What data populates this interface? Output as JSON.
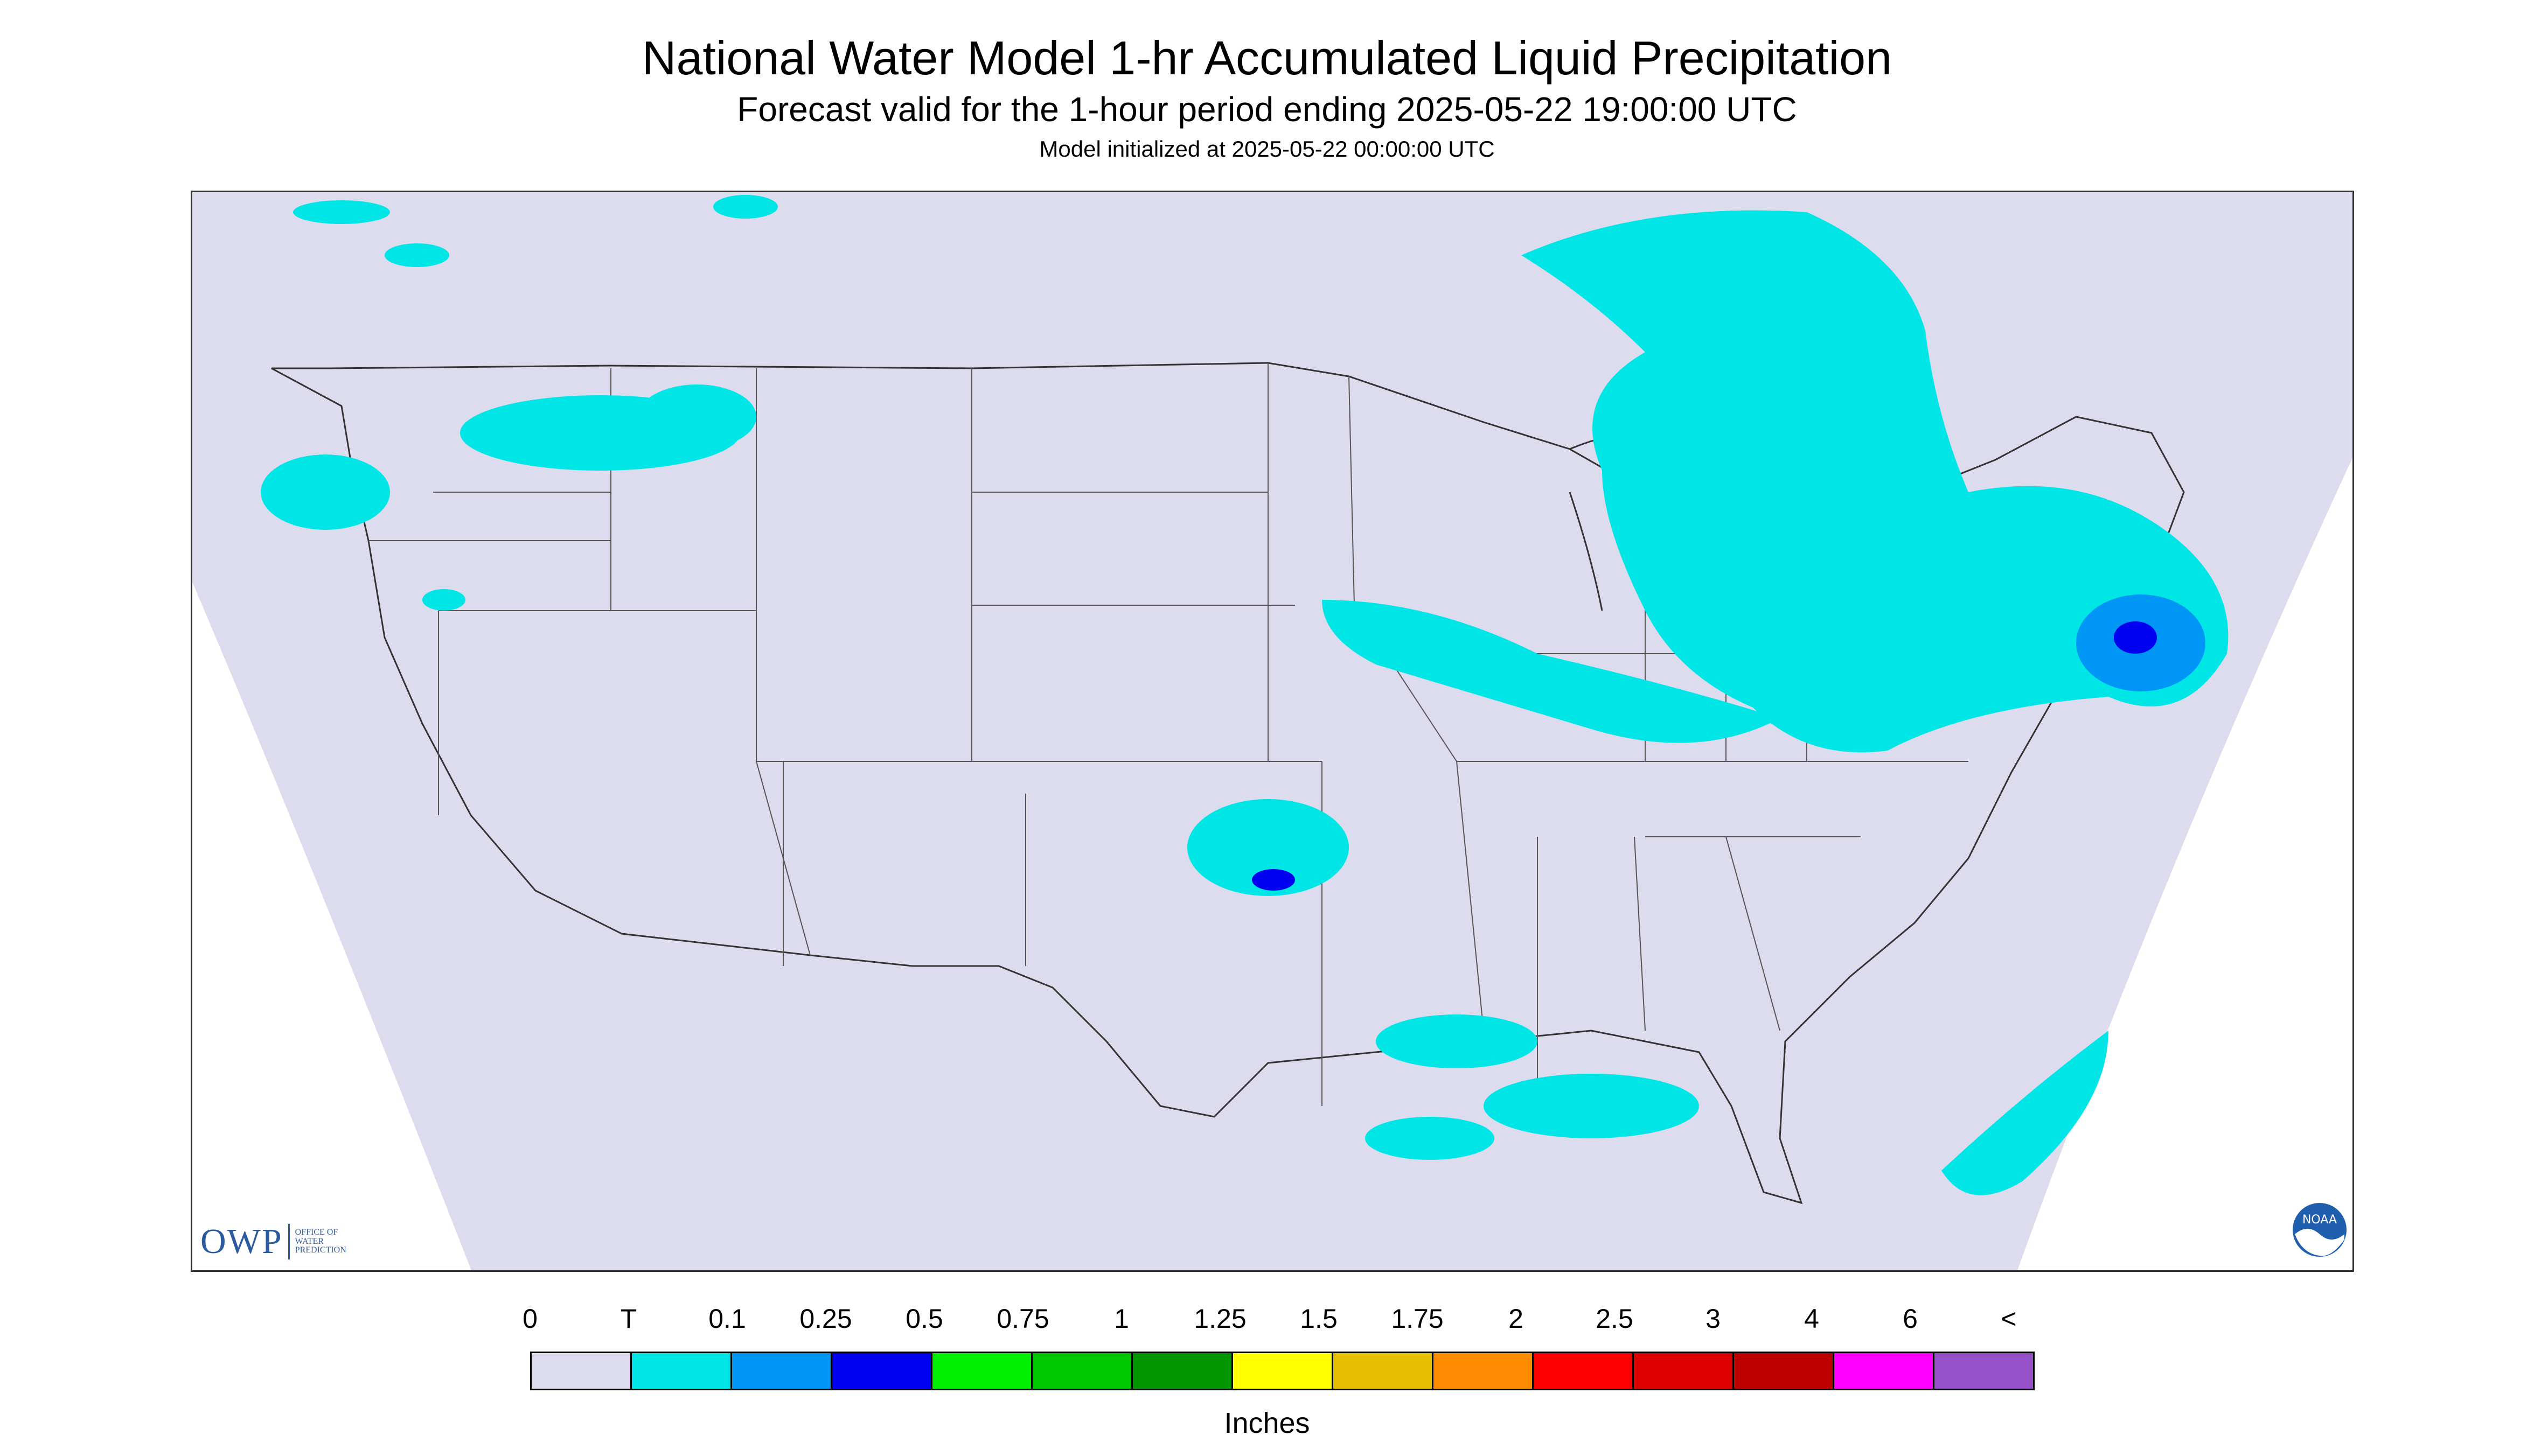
{
  "header": {
    "title": "National Water Model 1-hr Accumulated Liquid Precipitation",
    "subtitle": "Forecast valid for the 1-hour period ending 2025-05-22 19:00:00 UTC",
    "init": "Model initialized at 2025-05-22 00:00:00 UTC"
  },
  "logos": {
    "owp_mark": "OWP",
    "owp_line1": "OFFICE OF",
    "owp_line2": "WATER",
    "owp_line3": "PREDICTION",
    "noaa": "NOAA"
  },
  "legend": {
    "labels": [
      "0",
      "T",
      "0.1",
      "0.25",
      "0.5",
      "0.75",
      "1",
      "1.25",
      "1.5",
      "1.75",
      "2",
      "2.5",
      "3",
      "4",
      "6",
      "<"
    ],
    "colors": [
      "#dcdcee",
      "#00e6e6",
      "#0096f5",
      "#0000f0",
      "#00f000",
      "#00c800",
      "#009600",
      "#ffff00",
      "#e6be00",
      "#ff8c00",
      "#ff0000",
      "#dc0000",
      "#be0000",
      "#ff00ff",
      "#9650c8"
    ],
    "units": "Inches"
  },
  "map": {
    "domain_fill": "#dcdcee",
    "precip_light": "#00e6e6",
    "precip_medium": "#0096f5",
    "precip_heavy": "#0000f0",
    "boundary_color": "#333333"
  }
}
